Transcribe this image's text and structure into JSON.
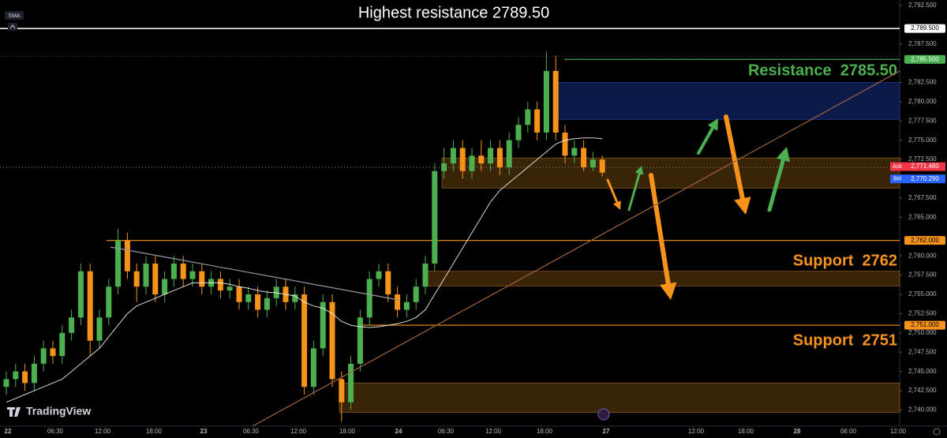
{
  "chart_data": {
    "type": "candlestick",
    "title": "Highest resistance  2789.50",
    "brand": "TradingView",
    "indicator": "SMA",
    "ylim": [
      2737.9,
      2793.2
    ],
    "yticks": [
      {
        "value": 2740,
        "label": "2,740.000"
      },
      {
        "value": 2742.5,
        "label": "2,742.500"
      },
      {
        "value": 2745,
        "label": "2,745.000"
      },
      {
        "value": 2747.5,
        "label": "2,747.500"
      },
      {
        "value": 2750,
        "label": "2,750.000"
      },
      {
        "value": 2752.5,
        "label": "2,752.500"
      },
      {
        "value": 2755,
        "label": "2,755.000"
      },
      {
        "value": 2757.5,
        "label": "2,757.500"
      },
      {
        "value": 2760,
        "label": "2,760.000"
      },
      {
        "value": 2765,
        "label": "2,765.000"
      },
      {
        "value": 2767.5,
        "label": "2,767.500"
      },
      {
        "value": 2772.5,
        "label": "2,772.500"
      },
      {
        "value": 2775,
        "label": "2,775.000"
      },
      {
        "value": 2777.5,
        "label": "2,777.500"
      },
      {
        "value": 2780,
        "label": "2,780.000"
      },
      {
        "value": 2782.5,
        "label": "2,782.500"
      },
      {
        "value": 2787.5,
        "label": "2,787.500"
      },
      {
        "value": 2792.5,
        "label": "2,792.500"
      }
    ],
    "x_labels": [
      "22",
      "06:30",
      "12:00",
      "18:00",
      "23",
      "06:30",
      "12:00",
      "18:00",
      "24",
      "06:30",
      "12:00",
      "18:00",
      "27",
      "12:00",
      "18:00",
      "28",
      "06:00",
      "12:00"
    ],
    "up_color": "#4caf50",
    "down_color": "#f7931a",
    "open": [
      2743,
      2744,
      2745,
      2743.5,
      2746,
      2748,
      2747,
      2750,
      2752,
      2758,
      2749,
      2752,
      2756,
      2762,
      2758,
      2756,
      2759,
      2755,
      2757,
      2759,
      2757,
      2758,
      2756,
      2757,
      2755.5,
      2756,
      2754,
      2755,
      2753,
      2754.5,
      2756,
      2754,
      2755,
      2743,
      2748,
      2754,
      2744,
      2741,
      2746,
      2752,
      2757,
      2758,
      2755,
      2753,
      2754,
      2756,
      2759,
      2771,
      2772,
      2774,
      2771,
      2773,
      2772,
      2774,
      2771.5,
      2775,
      2777,
      2779,
      2776,
      2784,
      2776,
      2773,
      2774,
      2771.5,
      2772.5
    ],
    "high": [
      2745,
      2746,
      2746,
      2747,
      2749,
      2749,
      2751,
      2753,
      2759,
      2759,
      2753,
      2757,
      2763.5,
      2763,
      2759,
      2760,
      2760,
      2758,
      2760,
      2760,
      2759,
      2759,
      2758,
      2758,
      2757,
      2757,
      2756,
      2756,
      2755.5,
      2757,
      2757,
      2756,
      2756,
      2749,
      2755,
      2755,
      2745,
      2747,
      2753,
      2758,
      2759,
      2759,
      2756,
      2755,
      2757,
      2760,
      2772,
      2774,
      2775,
      2775,
      2774,
      2775,
      2775,
      2775,
      2776,
      2778,
      2780,
      2780,
      2786.5,
      2786,
      2777,
      2775,
      2775,
      2773.5,
      2773
    ],
    "low": [
      2742,
      2743,
      2742.5,
      2742.5,
      2745,
      2746,
      2746,
      2749,
      2751,
      2747,
      2748,
      2751,
      2755,
      2757,
      2754,
      2755,
      2754,
      2754,
      2756,
      2756,
      2756,
      2755,
      2755,
      2754.5,
      2754.5,
      2753,
      2753,
      2752,
      2752,
      2753.5,
      2753,
      2753,
      2742,
      2742,
      2747,
      2743,
      2738.5,
      2740,
      2745,
      2751,
      2756,
      2754,
      2752,
      2752,
      2753,
      2755,
      2758,
      2770,
      2771,
      2770,
      2770,
      2771,
      2771,
      2770.5,
      2770.5,
      2774,
      2776,
      2775,
      2775,
      2775,
      2772,
      2772,
      2771,
      2771,
      2770.3
    ],
    "close": [
      2744,
      2745,
      2743.5,
      2746,
      2748,
      2747,
      2750,
      2752,
      2758,
      2749,
      2752,
      2756,
      2762,
      2758,
      2756,
      2759,
      2755,
      2757,
      2759,
      2757,
      2758,
      2756,
      2757,
      2755.5,
      2756,
      2754,
      2755,
      2753,
      2754.5,
      2756,
      2754,
      2755,
      2743,
      2748,
      2754,
      2744,
      2741,
      2746,
      2752,
      2757,
      2758,
      2755,
      2753,
      2754,
      2756,
      2759,
      2771,
      2772,
      2774,
      2771,
      2773,
      2772,
      2774,
      2771.5,
      2775,
      2777,
      2779,
      2776,
      2784,
      2776,
      2773,
      2774,
      2771.5,
      2772.5,
      2770.8
    ],
    "sma": {
      "color": "#ffffff",
      "values": [
        2741,
        2741.5,
        2742,
        2742.5,
        2743,
        2743.5,
        2744,
        2745,
        2746,
        2747,
        2748,
        2749.5,
        2751,
        2752.5,
        2753.5,
        2754,
        2754.5,
        2755,
        2755.5,
        2756,
        2756.5,
        2756.5,
        2756.5,
        2756.5,
        2756.3,
        2756,
        2755.8,
        2755.5,
        2755.3,
        2755.2,
        2755,
        2754.8,
        2754,
        2753.5,
        2753.2,
        2752.5,
        2751.5,
        2751,
        2750.8,
        2750.7,
        2750.8,
        2751,
        2751.2,
        2751.5,
        2752,
        2753,
        2755,
        2757,
        2759,
        2761,
        2763,
        2765,
        2767,
        2768.5,
        2769.5,
        2770.5,
        2771.5,
        2772.5,
        2773.5,
        2774.5,
        2775,
        2775.2,
        2775.3,
        2775.3,
        2775.2
      ]
    },
    "zones": [
      {
        "low": 2777.7,
        "high": 2782.5,
        "color": "#0c1a4a"
      },
      {
        "low": 2768.8,
        "high": 2772.7,
        "color": "#3a2408"
      },
      {
        "low": 2756.1,
        "high": 2758,
        "color": "#3a2408"
      },
      {
        "low": 2739.7,
        "high": 2743.5,
        "color": "#3a2408"
      }
    ],
    "levels": [
      {
        "value": 2789.5,
        "label": "2,789.500",
        "color": "#ffffff",
        "text_color": "#000000"
      },
      {
        "value": 2785.5,
        "label": "2,785.500",
        "color": "#4caf50",
        "text_color": "#ffffff"
      },
      {
        "value": 2762,
        "label": "2,762.000",
        "color": "#f7931a",
        "text_color": "#000000"
      },
      {
        "value": 2751,
        "label": "2,751.000",
        "color": "#f7931a",
        "text_color": "#000000"
      }
    ],
    "quotes": [
      {
        "name": "Ask",
        "value": 2771.48,
        "label": "2,771.480",
        "color": "#f23645"
      },
      {
        "name": "Bid",
        "value": 2770.29,
        "label": "2,770.290",
        "color": "#2962ff"
      }
    ],
    "annotations": [
      {
        "text": "Resistance  2785.50",
        "color": "#4caf50"
      },
      {
        "text": "Support  2762",
        "color": "#f7931a"
      },
      {
        "text": "Support  2751",
        "color": "#f7931a"
      }
    ]
  }
}
